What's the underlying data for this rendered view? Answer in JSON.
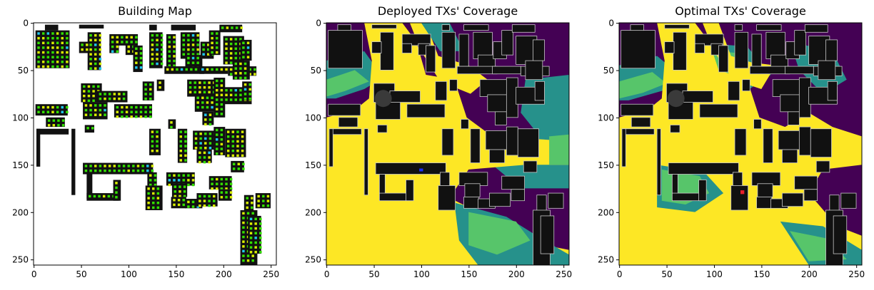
{
  "panels": [
    {
      "title": "Building Map",
      "xticks": [
        "0",
        "50",
        "100",
        "150",
        "200",
        "250"
      ],
      "yticks": [
        "0",
        "50",
        "100",
        "150",
        "200",
        "250"
      ]
    },
    {
      "title": "Deployed TXs' Coverage",
      "xticks": [
        "0",
        "50",
        "100",
        "150",
        "200",
        "250"
      ],
      "yticks": [
        "0",
        "50",
        "100",
        "150",
        "200",
        "250"
      ]
    },
    {
      "title": "Optimal TXs' Coverage",
      "xticks": [
        "0",
        "50",
        "100",
        "150",
        "200",
        "250"
      ],
      "yticks": [
        "0",
        "50",
        "100",
        "150",
        "200",
        "250"
      ]
    }
  ],
  "colors": {
    "building": "#111111",
    "sensor_green": "#33e000",
    "sensor_yellow": "#d8f000",
    "sensor_cyan": "#21c8ee",
    "coverage_purple": "#440154",
    "coverage_teal": "#26918b",
    "coverage_green": "#57c56a",
    "coverage_yellow": "#fde725",
    "deployed_tx": "#1a2cff",
    "optimal_tx": "#e8202a"
  }
}
